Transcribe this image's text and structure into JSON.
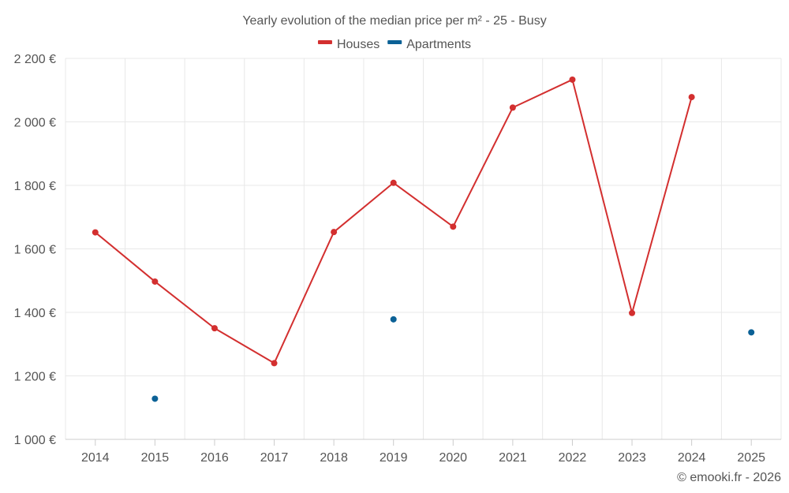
{
  "chart_data": {
    "type": "line",
    "title": "Yearly evolution of the median price per m² - 25 - Busy",
    "categories": [
      "2014",
      "2015",
      "2016",
      "2017",
      "2018",
      "2019",
      "2020",
      "2021",
      "2022",
      "2023",
      "2024",
      "2025"
    ],
    "ylim": [
      1000,
      2200
    ],
    "yticks": [
      1000,
      1200,
      1400,
      1600,
      1800,
      2000,
      2200
    ],
    "ytick_labels": [
      "1 000 €",
      "1 200 €",
      "1 400 €",
      "1 600 €",
      "1 800 €",
      "2 000 €",
      "2 200 €"
    ],
    "grid": true,
    "legend_position": "top-center",
    "series": [
      {
        "name": "Houses",
        "color": "#d32f2f",
        "values": [
          1652,
          1497,
          1350,
          1240,
          1653,
          1808,
          1670,
          2045,
          2133,
          1398,
          2078,
          null
        ]
      },
      {
        "name": "Apartments",
        "color": "#0b6196",
        "values": [
          null,
          1128,
          null,
          null,
          null,
          1378,
          null,
          null,
          null,
          null,
          null,
          1337
        ]
      }
    ],
    "credit": "© emooki.fr - 2026"
  }
}
